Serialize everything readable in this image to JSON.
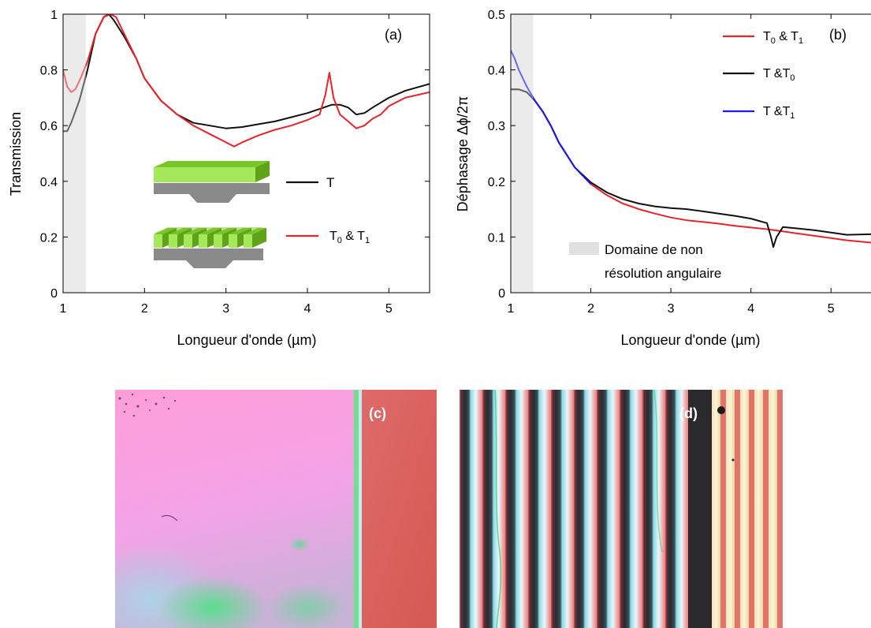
{
  "chart_data": [
    {
      "type": "line",
      "panel_label": "(a)",
      "xlabel": "Longueur d'onde (µm)",
      "ylabel": "Transmission",
      "xlim": [
        1,
        5.5
      ],
      "ylim": [
        0,
        1
      ],
      "xticks": [
        "1",
        "2",
        "3",
        "4",
        "5"
      ],
      "yticks": [
        "0",
        "0.2",
        "0.4",
        "0.6",
        "0.8",
        "1"
      ],
      "shaded_region": {
        "x": [
          1,
          1.28
        ],
        "color": "#e0e0e0"
      },
      "series": [
        {
          "name": "T",
          "color": "#111111",
          "x": [
            1.0,
            1.05,
            1.1,
            1.2,
            1.3,
            1.4,
            1.5,
            1.56,
            1.62,
            1.75,
            1.9,
            2.0,
            2.2,
            2.4,
            2.6,
            2.8,
            3.0,
            3.2,
            3.4,
            3.6,
            3.8,
            4.0,
            4.2,
            4.3,
            4.4,
            4.5,
            4.6,
            4.7,
            4.8,
            5.0,
            5.2,
            5.5
          ],
          "y": [
            0.58,
            0.58,
            0.61,
            0.69,
            0.8,
            0.93,
            0.99,
            1.0,
            0.98,
            0.92,
            0.84,
            0.77,
            0.69,
            0.64,
            0.61,
            0.6,
            0.59,
            0.595,
            0.605,
            0.615,
            0.63,
            0.645,
            0.665,
            0.675,
            0.675,
            0.665,
            0.64,
            0.645,
            0.665,
            0.7,
            0.725,
            0.75
          ]
        },
        {
          "name": "T₀ & T₁",
          "color": "#e8232a",
          "x": [
            1.0,
            1.05,
            1.1,
            1.15,
            1.2,
            1.3,
            1.4,
            1.5,
            1.58,
            1.65,
            1.75,
            1.9,
            2.0,
            2.2,
            2.4,
            2.6,
            2.8,
            3.0,
            3.1,
            3.2,
            3.4,
            3.6,
            3.8,
            4.0,
            4.15,
            4.22,
            4.27,
            4.32,
            4.4,
            4.5,
            4.6,
            4.7,
            4.8,
            4.9,
            5.0,
            5.2,
            5.5
          ],
          "y": [
            0.8,
            0.74,
            0.72,
            0.73,
            0.76,
            0.83,
            0.93,
            0.99,
            1.0,
            0.99,
            0.93,
            0.84,
            0.77,
            0.69,
            0.64,
            0.6,
            0.57,
            0.54,
            0.525,
            0.54,
            0.565,
            0.585,
            0.6,
            0.62,
            0.64,
            0.71,
            0.79,
            0.7,
            0.64,
            0.615,
            0.59,
            0.6,
            0.625,
            0.64,
            0.67,
            0.7,
            0.72
          ]
        }
      ],
      "legend": [
        {
          "label": "T",
          "color": "#111111"
        },
        {
          "label_base": "T",
          "label_sub1": "0",
          "label_mid": " & T",
          "label_sub2": "1",
          "color": "#e8232a"
        }
      ]
    },
    {
      "type": "line",
      "panel_label": "(b)",
      "xlabel": "Longueur d'onde (µm)",
      "ylabel": "Déphasage Δϕ/2π",
      "xlim": [
        1,
        5.5
      ],
      "ylim": [
        0,
        0.5
      ],
      "xticks": [
        "1",
        "2",
        "3",
        "4",
        "5"
      ],
      "yticks": [
        "0",
        "0.1",
        "0.2",
        "0.3",
        "0.4",
        "0.5"
      ],
      "shaded_region": {
        "x": [
          1,
          1.28
        ],
        "color": "#e0e0e0",
        "label_line1": "Domaine de non",
        "label_line2": "résolution angulaire"
      },
      "series": [
        {
          "name": "T₀ & T₁",
          "color": "#e8232a",
          "x": [
            1.0,
            1.1,
            1.2,
            1.3,
            1.4,
            1.5,
            1.6,
            1.8,
            2.0,
            2.2,
            2.4,
            2.6,
            2.8,
            3.0,
            3.2,
            3.4,
            3.6,
            3.8,
            4.0,
            4.2,
            4.4,
            4.6,
            4.8,
            5.0,
            5.2,
            5.5
          ],
          "y": [
            0.365,
            0.365,
            0.36,
            0.345,
            0.325,
            0.3,
            0.27,
            0.225,
            0.195,
            0.175,
            0.16,
            0.15,
            0.142,
            0.135,
            0.13,
            0.127,
            0.124,
            0.12,
            0.117,
            0.114,
            0.11,
            0.106,
            0.102,
            0.098,
            0.094,
            0.09
          ]
        },
        {
          "name": "T &T₀",
          "color": "#111111",
          "x": [
            1.0,
            1.1,
            1.2,
            1.3,
            1.4,
            1.5,
            1.6,
            1.8,
            2.0,
            2.2,
            2.4,
            2.6,
            2.8,
            3.0,
            3.2,
            3.4,
            3.6,
            3.8,
            4.0,
            4.2,
            4.25,
            4.28,
            4.32,
            4.4,
            4.6,
            4.8,
            5.0,
            5.2,
            5.5
          ],
          "y": [
            0.365,
            0.365,
            0.36,
            0.345,
            0.325,
            0.3,
            0.27,
            0.225,
            0.198,
            0.18,
            0.168,
            0.16,
            0.155,
            0.152,
            0.15,
            0.146,
            0.142,
            0.138,
            0.133,
            0.125,
            0.1,
            0.082,
            0.1,
            0.118,
            0.115,
            0.112,
            0.108,
            0.104,
            0.105
          ]
        },
        {
          "name": "T &T₁",
          "color": "#1a1aee",
          "x": [
            1.0,
            1.05,
            1.1,
            1.2,
            1.3,
            1.4,
            1.5,
            1.6,
            1.8,
            2.0
          ],
          "y": [
            0.435,
            0.42,
            0.4,
            0.37,
            0.345,
            0.325,
            0.3,
            0.27,
            0.225,
            0.195
          ]
        }
      ],
      "legend": [
        {
          "label_base": "T",
          "label_sub1": "0",
          "label_mid": " & T",
          "label_sub2": "1",
          "color": "#e8232a"
        },
        {
          "label_base": "T &T",
          "label_sub1": "0",
          "color": "#111111"
        },
        {
          "label_base": "T &T",
          "label_sub1": "1",
          "color": "#1a1aee"
        }
      ]
    }
  ],
  "photos": [
    {
      "label": "(c)"
    },
    {
      "label": "(d)"
    }
  ]
}
